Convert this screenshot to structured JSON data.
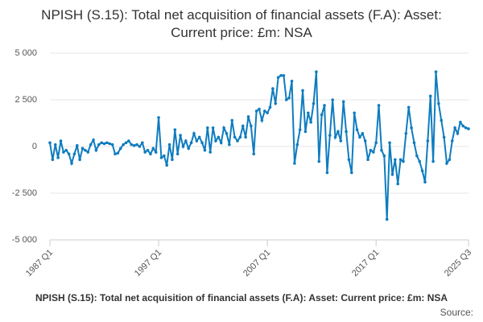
{
  "chart_data": {
    "type": "line",
    "title": "NPISH (S.15): Total net acquisition of financial assets (F.A): Asset: Current price: £m: NSA",
    "source": "Source:",
    "categories": [
      "1987 Q1",
      null,
      null,
      null,
      null,
      null,
      null,
      null,
      null,
      null,
      null,
      null,
      null,
      null,
      null,
      null,
      null,
      null,
      null,
      null,
      null,
      null,
      null,
      null,
      null,
      null,
      null,
      null,
      null,
      null,
      null,
      null,
      null,
      null,
      null,
      null,
      null,
      null,
      null,
      null,
      "1997 Q1",
      null,
      null,
      null,
      null,
      null,
      null,
      null,
      null,
      null,
      null,
      null,
      null,
      null,
      null,
      null,
      null,
      null,
      null,
      null,
      null,
      null,
      null,
      null,
      null,
      null,
      null,
      null,
      null,
      null,
      null,
      null,
      null,
      null,
      null,
      null,
      null,
      null,
      null,
      null,
      "2007 Q1",
      null,
      null,
      null,
      null,
      null,
      null,
      null,
      null,
      null,
      null,
      null,
      null,
      null,
      null,
      null,
      null,
      null,
      null,
      null,
      null,
      null,
      null,
      null,
      null,
      null,
      null,
      null,
      null,
      null,
      null,
      null,
      null,
      null,
      null,
      null,
      null,
      null,
      null,
      null,
      "2017 Q1",
      null,
      null,
      null,
      null,
      null,
      null,
      null,
      null,
      null,
      null,
      null,
      null,
      null,
      null,
      null,
      null,
      null,
      null,
      null,
      null,
      null,
      null,
      null,
      null,
      null,
      null,
      null,
      null,
      null,
      null,
      null,
      null,
      null,
      "2025 Q3"
    ],
    "series": [
      {
        "name": "NPISH (S.15): Total net acquisition of financial assets (F.A): Asset: Current price: £m: NSA",
        "color": "#0f7cbf",
        "values": [
          200,
          -700,
          100,
          -600,
          300,
          -300,
          -200,
          -400,
          -900,
          -400,
          50,
          -700,
          -100,
          -200,
          -300,
          100,
          350,
          -200,
          100,
          200,
          150,
          200,
          150,
          100,
          -400,
          -350,
          -100,
          100,
          200,
          300,
          100,
          50,
          100,
          0,
          200,
          -300,
          -200,
          -400,
          -100,
          -300,
          1550,
          -600,
          -500,
          -1000,
          100,
          -700,
          900,
          -400,
          600,
          0,
          300,
          -100,
          200,
          700,
          300,
          500,
          200,
          -200,
          1000,
          -300,
          1000,
          300,
          500,
          200,
          1000,
          700,
          100,
          1400,
          500,
          300,
          500,
          1100,
          500,
          1600,
          1100,
          -400,
          1900,
          2000,
          1400,
          1900,
          1800,
          2100,
          3100,
          2300,
          3700,
          3800,
          3800,
          2500,
          2600,
          3500,
          -900,
          100,
          900,
          3000,
          800,
          1800,
          1300,
          2300,
          4000,
          -800,
          1700,
          2200,
          -1400,
          600,
          2500,
          500,
          800,
          300,
          2400,
          800,
          -700,
          -1400,
          1800,
          900,
          500,
          700,
          300,
          -700,
          -200,
          -300,
          200,
          2200,
          -200,
          -500,
          -3900,
          200,
          -1500,
          -700,
          -2000,
          -700,
          -800,
          700,
          2100,
          1000,
          200,
          -500,
          -800,
          -1300,
          -1900,
          300,
          2700,
          -800,
          4000,
          2300,
          1400,
          500,
          -900,
          -700,
          300,
          1000,
          700,
          1300,
          1100,
          1000,
          950
        ]
      }
    ],
    "ylim": [
      -5000,
      5000
    ],
    "yticks": [
      {
        "value": -5000,
        "label": "-5 000"
      },
      {
        "value": -2500,
        "label": "-2 500"
      },
      0,
      {
        "value": 2500,
        "label": "2 500"
      },
      {
        "value": 5000,
        "label": "5 000"
      }
    ],
    "grid": true
  }
}
